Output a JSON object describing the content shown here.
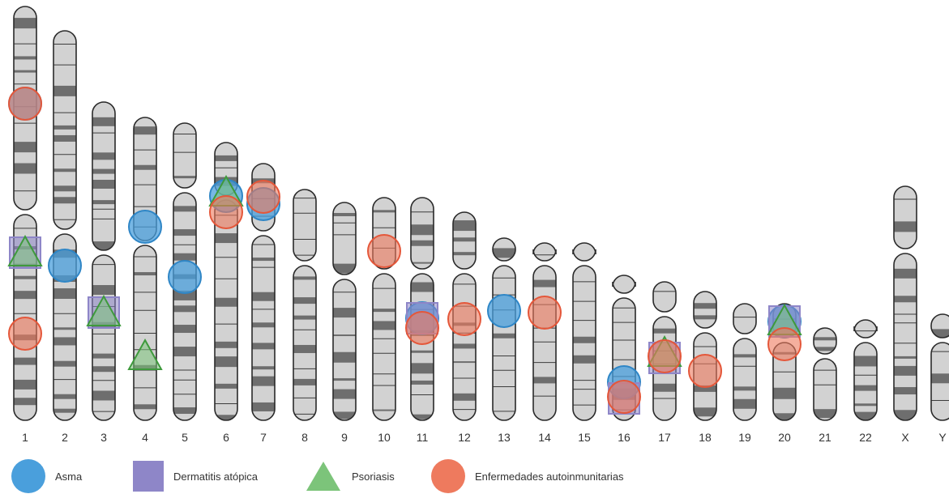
{
  "chromosome_labels": [
    "1",
    "2",
    "3",
    "4",
    "5",
    "6",
    "7",
    "8",
    "9",
    "10",
    "11",
    "12",
    "13",
    "14",
    "15",
    "16",
    "17",
    "18",
    "19",
    "20",
    "21",
    "22",
    "X",
    "Y"
  ],
  "colors": {
    "chromosome_fill": "#d2d2d2",
    "chromosome_stroke": "#2a2a2a",
    "band_dark": "#6e6e6e",
    "asma": "#4a9fdc",
    "dermatitis": "#8e86c8",
    "psoriasis": "#7cc47a",
    "autoinmune": "#ee7a5e"
  },
  "legend": {
    "asma": {
      "label": "Asma",
      "icon": "blue-circle"
    },
    "dermatitis": {
      "label": "Dermatitis atópica",
      "icon": "purple-square"
    },
    "psoriasis": {
      "label": "Psoriasis",
      "icon": "green-triangle"
    },
    "autoinmune": {
      "label": "Enfermedades autoinmunitarias",
      "icon": "orange-circle"
    }
  },
  "markers": [
    {
      "chromosome": "1",
      "disease": "asma"
    },
    {
      "chromosome": "1",
      "disease": "autoinmune"
    },
    {
      "chromosome": "1",
      "disease": "dermatitis"
    },
    {
      "chromosome": "1",
      "disease": "psoriasis"
    },
    {
      "chromosome": "1",
      "disease": "autoinmune"
    },
    {
      "chromosome": "2",
      "disease": "asma"
    },
    {
      "chromosome": "3",
      "disease": "dermatitis"
    },
    {
      "chromosome": "3",
      "disease": "psoriasis"
    },
    {
      "chromosome": "4",
      "disease": "asma"
    },
    {
      "chromosome": "4",
      "disease": "psoriasis"
    },
    {
      "chromosome": "5",
      "disease": "asma"
    },
    {
      "chromosome": "6",
      "disease": "asma"
    },
    {
      "chromosome": "6",
      "disease": "psoriasis"
    },
    {
      "chromosome": "6",
      "disease": "autoinmune"
    },
    {
      "chromosome": "7",
      "disease": "asma"
    },
    {
      "chromosome": "7",
      "disease": "autoinmune"
    },
    {
      "chromosome": "10",
      "disease": "autoinmune"
    },
    {
      "chromosome": "11",
      "disease": "asma"
    },
    {
      "chromosome": "11",
      "disease": "dermatitis"
    },
    {
      "chromosome": "11",
      "disease": "autoinmune"
    },
    {
      "chromosome": "12",
      "disease": "autoinmune"
    },
    {
      "chromosome": "13",
      "disease": "asma"
    },
    {
      "chromosome": "14",
      "disease": "autoinmune"
    },
    {
      "chromosome": "16",
      "disease": "asma"
    },
    {
      "chromosome": "16",
      "disease": "dermatitis"
    },
    {
      "chromosome": "16",
      "disease": "autoinmune"
    },
    {
      "chromosome": "17",
      "disease": "dermatitis"
    },
    {
      "chromosome": "17",
      "disease": "psoriasis"
    },
    {
      "chromosome": "17",
      "disease": "autoinmune"
    },
    {
      "chromosome": "18",
      "disease": "autoinmune"
    },
    {
      "chromosome": "20",
      "disease": "asma"
    },
    {
      "chromosome": "20",
      "disease": "dermatitis"
    },
    {
      "chromosome": "20",
      "disease": "psoriasis"
    },
    {
      "chromosome": "20",
      "disease": "autoinmune"
    }
  ]
}
